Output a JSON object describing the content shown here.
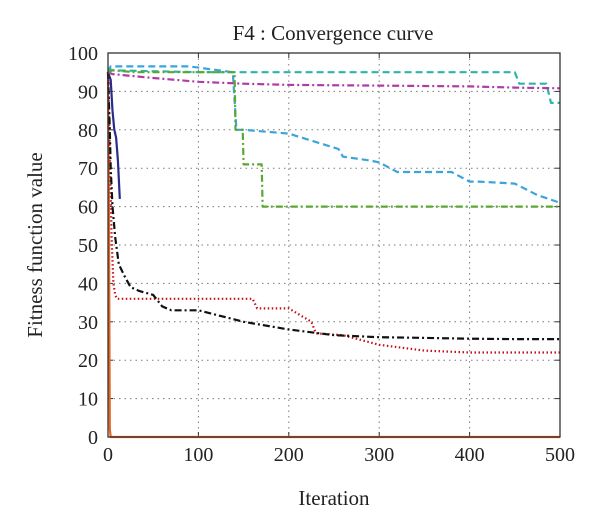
{
  "chart_data": {
    "type": "line",
    "title": "F4 : Convergence curve",
    "xlabel": "Iteration",
    "ylabel": "Fitness function value",
    "xlim": [
      0,
      500
    ],
    "ylim": [
      0,
      100
    ],
    "xticks": [
      0,
      100,
      200,
      300,
      400,
      500
    ],
    "yticks": [
      0,
      10,
      20,
      30,
      40,
      50,
      60,
      70,
      80,
      90,
      100
    ],
    "grid": true,
    "series": [
      {
        "color": "#e8651f",
        "dash": "solid",
        "x": [
          0,
          1,
          2,
          3,
          500
        ],
        "y": [
          95,
          60,
          2,
          0,
          0
        ]
      },
      {
        "color": "#2b2b8c",
        "dash": "solid",
        "x": [
          0,
          3,
          5,
          7,
          9,
          11,
          13
        ],
        "y": [
          95,
          93,
          85,
          80,
          78,
          72,
          62
        ]
      },
      {
        "color": "#c0111b",
        "dash": "1.5 2.5",
        "x": [
          0,
          2,
          4,
          6,
          8,
          10,
          40,
          80,
          160,
          165,
          200,
          225,
          230,
          260,
          300,
          350,
          400,
          450,
          500
        ],
        "y": [
          95,
          75,
          52,
          40,
          37,
          36,
          36,
          36,
          36,
          33.5,
          33.5,
          30,
          27,
          26.5,
          24,
          22.5,
          22,
          22,
          22
        ]
      },
      {
        "color": "#111111",
        "dash": "7 3 2 3",
        "x": [
          0,
          2,
          3,
          5,
          8,
          12,
          18,
          25,
          35,
          50,
          60,
          70,
          100,
          150,
          200,
          250,
          300,
          350,
          400,
          450,
          500
        ],
        "y": [
          95,
          80,
          70,
          60,
          52,
          45,
          42,
          39,
          38,
          37,
          34,
          33,
          33,
          30,
          28,
          26.5,
          26,
          25.8,
          25.6,
          25.5,
          25.5
        ]
      },
      {
        "color": "#3aa5dc",
        "dash": "7 4",
        "x": [
          0,
          3,
          5,
          10,
          90,
          138,
          142,
          150,
          200,
          255,
          260,
          290,
          300,
          320,
          380,
          400,
          410,
          450,
          475,
          500
        ],
        "y": [
          95,
          96.5,
          96.5,
          96.5,
          96.5,
          95,
          80,
          80,
          79,
          75,
          73,
          72,
          71.5,
          69,
          69,
          66.5,
          66.5,
          66,
          63,
          61
        ]
      },
      {
        "color": "#2bb5aa",
        "dash": "7 4",
        "x": [
          0,
          5,
          100,
          200,
          300,
          400,
          450,
          455,
          485,
          490,
          500
        ],
        "y": [
          96,
          95.5,
          95,
          95,
          95,
          95,
          95,
          92,
          92,
          87,
          87
        ]
      },
      {
        "color": "#b03aa8",
        "dash": "7 3 2 3",
        "x": [
          0,
          5,
          50,
          100,
          150,
          200,
          300,
          400,
          450,
          500
        ],
        "y": [
          95,
          94.5,
          93.5,
          92.5,
          92,
          91.7,
          91.5,
          91.3,
          91,
          90.8
        ]
      },
      {
        "color": "#5aa832",
        "dash": "7 3 2 3",
        "x": [
          0,
          5,
          30,
          140,
          141,
          149,
          150,
          170,
          171,
          500
        ],
        "y": [
          95,
          95.5,
          95,
          95,
          80,
          80,
          71,
          71,
          60,
          60
        ]
      }
    ]
  }
}
